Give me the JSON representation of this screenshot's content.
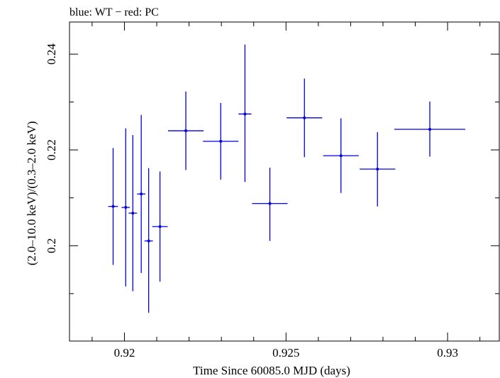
{
  "chart_data": {
    "type": "scatter",
    "title": "blue: WT − red: PC",
    "xlabel": "Time Since 60085.0 MJD (days)",
    "ylabel": "(2.0–10.0 keV)/(0.3–2.0 keV)",
    "xlim": [
      0.9183,
      0.9316
    ],
    "ylim": [
      0.1801,
      0.2467
    ],
    "x_ticks": [
      0.92,
      0.925,
      0.93
    ],
    "x_tick_labels": [
      "0.92",
      "0.925",
      "0.93"
    ],
    "y_ticks": [
      0.2,
      0.22,
      0.24
    ],
    "y_tick_labels": [
      "0.2",
      "0.22",
      "0.24"
    ],
    "x_minor_ticks": [
      0.919,
      0.921,
      0.922,
      0.923,
      0.924,
      0.926,
      0.927,
      0.928,
      0.929,
      0.931
    ],
    "y_minor_ticks": [
      0.19,
      0.21,
      0.23
    ],
    "grid": false,
    "series": [
      {
        "color": "#0000e0",
        "points": [
          {
            "x": 0.91965,
            "xerr": 0.00015,
            "y": 0.2082,
            "yerr_lo": 0.0122,
            "yerr_hi": 0.0122
          },
          {
            "x": 0.92004,
            "xerr": 0.00013,
            "y": 0.208,
            "yerr_lo": 0.0165,
            "yerr_hi": 0.0165
          },
          {
            "x": 0.92026,
            "xerr": 0.00013,
            "y": 0.2068,
            "yerr_lo": 0.0163,
            "yerr_hi": 0.0163
          },
          {
            "x": 0.92052,
            "xerr": 0.00013,
            "y": 0.2108,
            "yerr_lo": 0.0165,
            "yerr_hi": 0.0165
          },
          {
            "x": 0.92075,
            "xerr": 0.00013,
            "y": 0.201,
            "yerr_lo": 0.015,
            "yerr_hi": 0.0152
          },
          {
            "x": 0.9211,
            "xerr": 0.00024,
            "y": 0.204,
            "yerr_lo": 0.0115,
            "yerr_hi": 0.0115
          },
          {
            "x": 0.9219,
            "xerr": 0.00055,
            "y": 0.224,
            "yerr_lo": 0.0082,
            "yerr_hi": 0.0082
          },
          {
            "x": 0.92298,
            "xerr": 0.00055,
            "y": 0.2218,
            "yerr_lo": 0.008,
            "yerr_hi": 0.008
          },
          {
            "x": 0.92373,
            "xerr": 0.0002,
            "y": 0.2275,
            "yerr_lo": 0.0142,
            "yerr_hi": 0.0145
          },
          {
            "x": 0.9245,
            "xerr": 0.00055,
            "y": 0.2088,
            "yerr_lo": 0.0078,
            "yerr_hi": 0.0075
          },
          {
            "x": 0.92557,
            "xerr": 0.00055,
            "y": 0.2267,
            "yerr_lo": 0.0082,
            "yerr_hi": 0.0082
          },
          {
            "x": 0.9267,
            "xerr": 0.00055,
            "y": 0.2188,
            "yerr_lo": 0.0078,
            "yerr_hi": 0.0078
          },
          {
            "x": 0.92783,
            "xerr": 0.00055,
            "y": 0.216,
            "yerr_lo": 0.0078,
            "yerr_hi": 0.0077
          },
          {
            "x": 0.92945,
            "xerr": 0.0011,
            "y": 0.2243,
            "yerr_lo": 0.0057,
            "yerr_hi": 0.0058
          }
        ]
      }
    ]
  }
}
